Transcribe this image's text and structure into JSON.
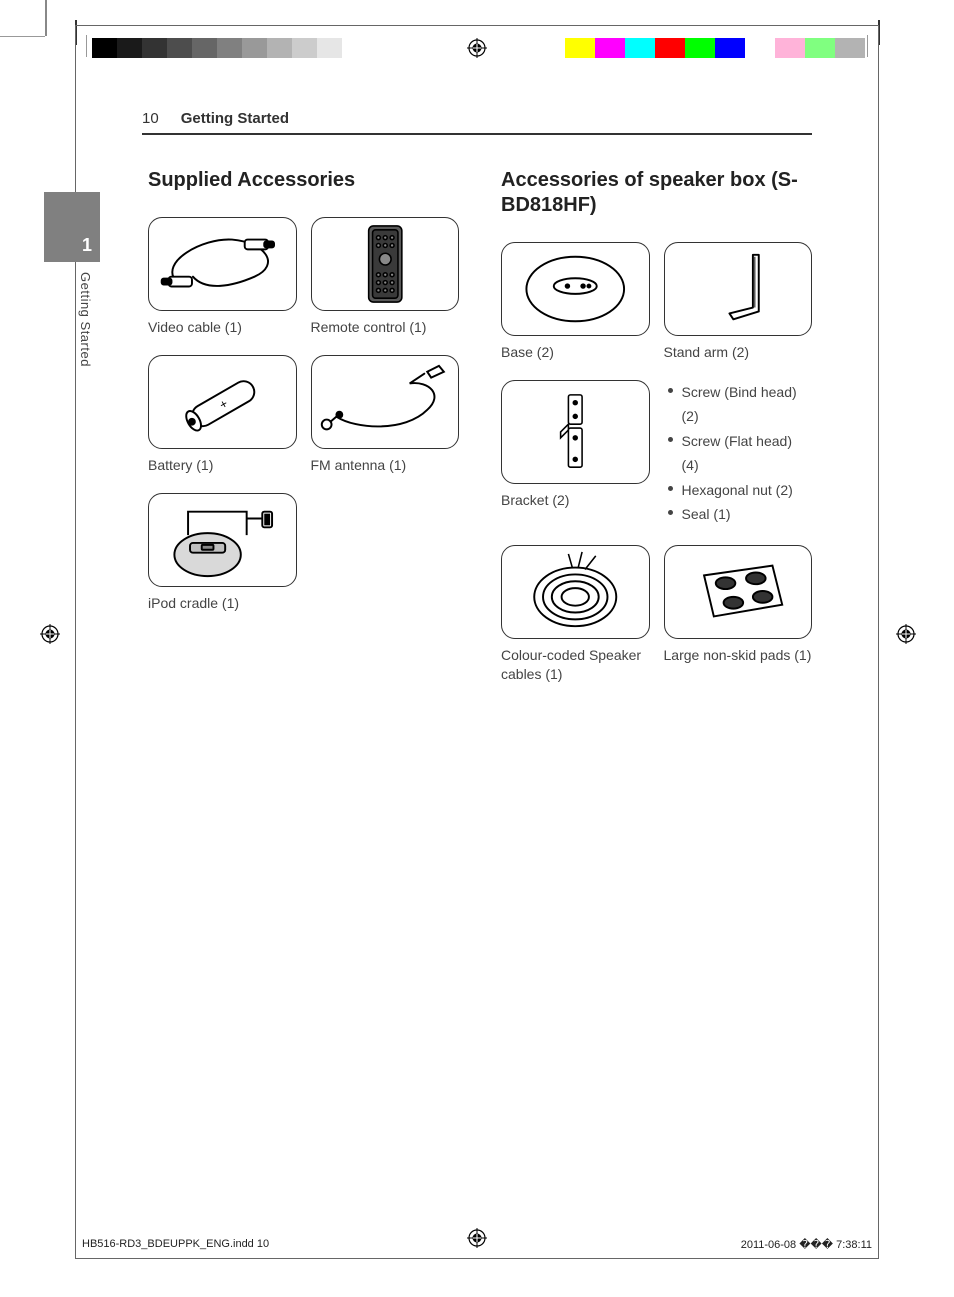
{
  "header": {
    "page_num": "10",
    "section": "Getting Started"
  },
  "side": {
    "chapter_num": "1",
    "chapter_title": "Getting Started"
  },
  "left": {
    "title": "Supplied Accessories",
    "items": {
      "video_cable": "Video cable (1)",
      "remote": "Remote control (1)",
      "battery": "Battery (1)",
      "fm_antenna": "FM antenna (1)",
      "ipod_cradle": "iPod cradle (1)"
    }
  },
  "right": {
    "title": "Accessories of speaker box (S-BD818HF)",
    "items": {
      "base": "Base (2)",
      "stand_arm": "Stand arm (2)",
      "bracket": "Bracket (2)",
      "speaker_cables": "Colour-coded Speaker cables (1)",
      "pads": "Large non-skid pads (1)"
    },
    "screw_list": [
      "Screw (Bind head) (2)",
      "Screw (Flat head) (4)",
      "Hexagonal nut (2)",
      "Seal (1)"
    ]
  },
  "footer": {
    "file": "HB516-RD3_BDEUPPK_ENG.indd   10",
    "date": "2011-06-08   ��� 7:38:11"
  },
  "colorbars": {
    "left": [
      "#000000",
      "#1a1a1a",
      "#333333",
      "#4d4d4d",
      "#666666",
      "#808080",
      "#999999",
      "#b3b3b3",
      "#cccccc",
      "#e6e6e6",
      "#ffffff"
    ],
    "right": [
      "#ffff00",
      "#ff00ff",
      "#00ffff",
      "#ff0000",
      "#00ff00",
      "#0000ff",
      "#ffffff",
      "#ffb3d9",
      "#80ff80",
      "#b3b3b3"
    ]
  },
  "icon_stroke": "#231f20",
  "icon_fill_gray": "#d9d9d9"
}
